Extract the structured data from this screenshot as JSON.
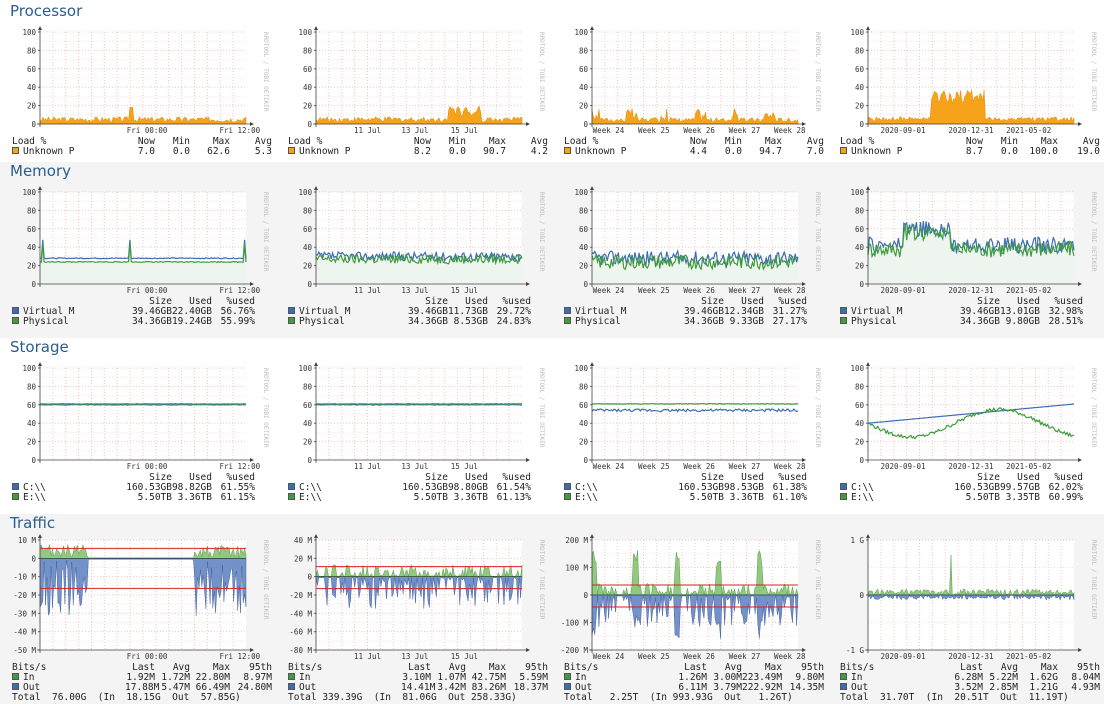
{
  "colors": {
    "title": "#2c5d8f",
    "orange": "#f7a21b",
    "blue": "#3a6db3",
    "green": "#3e9b3e",
    "red": "#d62020",
    "grid": "#f3c5c5"
  },
  "watermark": "RRDTOOL / TOBI OETIKER",
  "sections": [
    {
      "key": "processor",
      "title": "Processor",
      "graphs": [
        {
          "yticks": [
            "100",
            "80",
            "60",
            "40",
            "20",
            "0"
          ],
          "xlabels": [
            "Fri 00:00",
            "Fri 12:00"
          ],
          "legend": {
            "header": [
              "Load %",
              "Now",
              "Min",
              "Max",
              "Avg"
            ],
            "rows": [
              {
                "swatch": "orange",
                "cells": [
                  "Unknown P",
                  "7.0",
                  "0.0",
                  "62.6",
                  "5.3"
                ]
              }
            ]
          }
        },
        {
          "yticks": [
            "100",
            "80",
            "60",
            "40",
            "20",
            "0"
          ],
          "xlabels": [
            "11 Jul",
            "13 Jul",
            "15 Jul"
          ],
          "legend": {
            "header": [
              "Load %",
              "Now",
              "Min",
              "Max",
              "Avg"
            ],
            "rows": [
              {
                "swatch": "orange",
                "cells": [
                  "Unknown P",
                  "8.2",
                  "0.0",
                  "90.7",
                  "4.2"
                ]
              }
            ]
          }
        },
        {
          "yticks": [
            "100",
            "80",
            "60",
            "40",
            "20",
            "0"
          ],
          "xlabels": [
            "Week 24",
            "Week 25",
            "Week 26",
            "Week 27",
            "Week 28"
          ],
          "legend": {
            "header": [
              "Load %",
              "Now",
              "Min",
              "Max",
              "Avg"
            ],
            "rows": [
              {
                "swatch": "orange",
                "cells": [
                  "Unknown P",
                  "4.4",
                  "0.0",
                  "94.7",
                  "7.0"
                ]
              }
            ]
          }
        },
        {
          "yticks": [
            "100",
            "80",
            "60",
            "40",
            "20",
            "0"
          ],
          "xlabels": [
            "2020-09-01",
            "2020-12-31",
            "2021-05-02"
          ],
          "legend": {
            "header": [
              "Load %",
              "Now",
              "Min",
              "Max",
              "Avg"
            ],
            "rows": [
              {
                "swatch": "orange",
                "cells": [
                  "Unknown P",
                  "8.7",
                  "0.0",
                  "100.0",
                  "19.0"
                ]
              }
            ]
          }
        }
      ]
    },
    {
      "key": "memory",
      "title": "Memory",
      "graphs": [
        {
          "yticks": [
            "100",
            "80",
            "60",
            "40",
            "20",
            "0"
          ],
          "xlabels": [
            "Fri 00:00",
            "Fri 12:00"
          ],
          "legend": {
            "header": [
              "",
              "Size",
              "Used",
              "%used"
            ],
            "rows": [
              {
                "swatch": "blue",
                "cells": [
                  "Virtual M",
                  "39.46GB",
                  "22.40GB",
                  "56.76%"
                ]
              },
              {
                "swatch": "green",
                "cells": [
                  "Physical",
                  "34.36GB",
                  "19.24GB",
                  "55.99%"
                ]
              }
            ]
          }
        },
        {
          "yticks": [
            "100",
            "80",
            "60",
            "40",
            "20",
            "0"
          ],
          "xlabels": [
            "11 Jul",
            "13 Jul",
            "15 Jul"
          ],
          "legend": {
            "header": [
              "",
              "Size",
              "Used",
              "%used"
            ],
            "rows": [
              {
                "swatch": "blue",
                "cells": [
                  "Virtual M",
                  "39.46GB",
                  "11.73GB",
                  "29.72%"
                ]
              },
              {
                "swatch": "green",
                "cells": [
                  "Physical",
                  "34.36GB",
                  "8.53GB",
                  "24.83%"
                ]
              }
            ]
          }
        },
        {
          "yticks": [
            "100",
            "80",
            "60",
            "40",
            "20",
            "0"
          ],
          "xlabels": [
            "Week 24",
            "Week 25",
            "Week 26",
            "Week 27",
            "Week 28"
          ],
          "legend": {
            "header": [
              "",
              "Size",
              "Used",
              "%used"
            ],
            "rows": [
              {
                "swatch": "blue",
                "cells": [
                  "Virtual M",
                  "39.46GB",
                  "12.34GB",
                  "31.27%"
                ]
              },
              {
                "swatch": "green",
                "cells": [
                  "Physical",
                  "34.36GB",
                  "9.33GB",
                  "27.17%"
                ]
              }
            ]
          }
        },
        {
          "yticks": [
            "100",
            "80",
            "60",
            "40",
            "20",
            "0"
          ],
          "xlabels": [
            "2020-09-01",
            "2020-12-31",
            "2021-05-02"
          ],
          "legend": {
            "header": [
              "",
              "Size",
              "Used",
              "%used"
            ],
            "rows": [
              {
                "swatch": "blue",
                "cells": [
                  "Virtual M",
                  "39.46GB",
                  "13.01GB",
                  "32.98%"
                ]
              },
              {
                "swatch": "green",
                "cells": [
                  "Physical",
                  "34.36GB",
                  "9.80GB",
                  "28.51%"
                ]
              }
            ]
          }
        }
      ]
    },
    {
      "key": "storage",
      "title": "Storage",
      "graphs": [
        {
          "yticks": [
            "100",
            "80",
            "60",
            "40",
            "20",
            "0"
          ],
          "xlabels": [
            "Fri 00:00",
            "Fri 12:00"
          ],
          "legend": {
            "header": [
              "",
              "Size",
              "Used",
              "%used"
            ],
            "rows": [
              {
                "swatch": "blue",
                "cells": [
                  "C:\\\\",
                  "160.53GB",
                  "98.82GB",
                  "61.55%"
                ]
              },
              {
                "swatch": "green",
                "cells": [
                  "E:\\\\",
                  "5.50TB",
                  "3.36TB",
                  "61.15%"
                ]
              }
            ]
          }
        },
        {
          "yticks": [
            "100",
            "80",
            "60",
            "40",
            "20",
            "0"
          ],
          "xlabels": [
            "11 Jul",
            "13 Jul",
            "15 Jul"
          ],
          "legend": {
            "header": [
              "",
              "Size",
              "Used",
              "%used"
            ],
            "rows": [
              {
                "swatch": "blue",
                "cells": [
                  "C:\\\\",
                  "160.53GB",
                  "98.80GB",
                  "61.54%"
                ]
              },
              {
                "swatch": "green",
                "cells": [
                  "E:\\\\",
                  "5.50TB",
                  "3.36TB",
                  "61.13%"
                ]
              }
            ]
          }
        },
        {
          "yticks": [
            "100",
            "80",
            "60",
            "40",
            "20",
            "0"
          ],
          "xlabels": [
            "Week 24",
            "Week 25",
            "Week 26",
            "Week 27",
            "Week 28"
          ],
          "legend": {
            "header": [
              "",
              "Size",
              "Used",
              "%used"
            ],
            "rows": [
              {
                "swatch": "blue",
                "cells": [
                  "C:\\\\",
                  "160.53GB",
                  "98.53GB",
                  "61.38%"
                ]
              },
              {
                "swatch": "green",
                "cells": [
                  "E:\\\\",
                  "5.50TB",
                  "3.36TB",
                  "61.10%"
                ]
              }
            ]
          }
        },
        {
          "yticks": [
            "100",
            "80",
            "60",
            "40",
            "20",
            "0"
          ],
          "xlabels": [
            "2020-09-01",
            "2020-12-31",
            "2021-05-02"
          ],
          "legend": {
            "header": [
              "",
              "Size",
              "Used",
              "%used"
            ],
            "rows": [
              {
                "swatch": "blue",
                "cells": [
                  "C:\\\\",
                  "160.53GB",
                  "99.57GB",
                  "62.02%"
                ]
              },
              {
                "swatch": "green",
                "cells": [
                  "E:\\\\",
                  "5.50TB",
                  "3.35TB",
                  "60.99%"
                ]
              }
            ]
          }
        }
      ]
    },
    {
      "key": "traffic",
      "title": "Traffic",
      "graphs": [
        {
          "yticks": [
            "10 M",
            "0",
            "-10 M",
            "-20 M",
            "-30 M",
            "-40 M",
            "-50 M"
          ],
          "xlabels": [
            "Fri 00:00",
            "Fri 12:00"
          ],
          "legend": {
            "header": [
              "Bits/s",
              "Last",
              "Avg",
              "Max",
              "95th"
            ],
            "rows": [
              {
                "swatch": "green",
                "cells": [
                  "In",
                  "1.92M",
                  "1.72M",
                  "22.80M",
                  "8.97M"
                ]
              },
              {
                "swatch": "blue",
                "cells": [
                  "Out",
                  "17.88M",
                  "5.47M",
                  "66.49M",
                  "24.80M"
                ]
              }
            ],
            "total": "Total  76.00G  (In  18.15G  Out  57.85G)"
          }
        },
        {
          "yticks": [
            "40 M",
            "20 M",
            "0",
            "-20 M",
            "-40 M",
            "-60 M",
            "-80 M"
          ],
          "xlabels": [
            "11 Jul",
            "13 Jul",
            "15 Jul"
          ],
          "legend": {
            "header": [
              "Bits/s",
              "Last",
              "Avg",
              "Max",
              "95th"
            ],
            "rows": [
              {
                "swatch": "green",
                "cells": [
                  "In",
                  "3.10M",
                  "1.07M",
                  "42.75M",
                  "5.59M"
                ]
              },
              {
                "swatch": "blue",
                "cells": [
                  "Out",
                  "14.41M",
                  "3.42M",
                  "83.26M",
                  "18.37M"
                ]
              }
            ],
            "total": "Total 339.39G  (In  81.06G  Out 258.33G)"
          }
        },
        {
          "yticks": [
            "200 M",
            "100 M",
            "0",
            "-100 M",
            "-200 M"
          ],
          "xlabels": [
            "Week 24",
            "Week 25",
            "Week 26",
            "Week 27",
            "Week 28"
          ],
          "legend": {
            "header": [
              "Bits/s",
              "Last",
              "Avg",
              "Max",
              "95th"
            ],
            "rows": [
              {
                "swatch": "green",
                "cells": [
                  "In",
                  "1.26M",
                  "3.00M",
                  "223.49M",
                  "9.80M"
                ]
              },
              {
                "swatch": "blue",
                "cells": [
                  "Out",
                  "6.11M",
                  "3.79M",
                  "222.92M",
                  "14.35M"
                ]
              }
            ],
            "total": "Total   2.25T  (In 993.93G  Out   1.26T)"
          }
        },
        {
          "yticks": [
            "1 G",
            "0",
            "-1 G"
          ],
          "xlabels": [
            "2020-09-01",
            "2020-12-31",
            "2021-05-02"
          ],
          "legend": {
            "header": [
              "Bits/s",
              "Last",
              "Avg",
              "Max",
              "95th"
            ],
            "rows": [
              {
                "swatch": "green",
                "cells": [
                  "In",
                  "6.28M",
                  "5.22M",
                  "1.62G",
                  "8.04M"
                ]
              },
              {
                "swatch": "blue",
                "cells": [
                  "Out",
                  "3.52M",
                  "2.85M",
                  "1.21G",
                  "4.93M"
                ]
              }
            ],
            "total": "Total  31.70T  (In  20.51T  Out  11.19T)"
          }
        }
      ]
    }
  ]
}
